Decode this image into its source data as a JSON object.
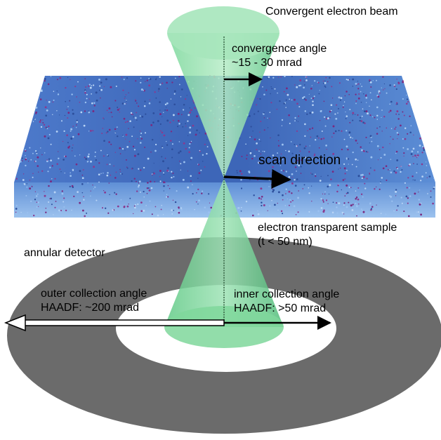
{
  "labels": {
    "beam": "Convergent electron beam",
    "convergence_angle": "convergence angle",
    "convergence_value": "~15 - 30 mrad",
    "scan_direction": "scan direction",
    "sample": "electron transparent sample",
    "sample_thickness": "(t < 50 nm)",
    "detector": "annular detector",
    "outer_angle": "outer collection angle",
    "outer_value": "HAADF: ~200 mrad",
    "inner_angle": "inner collection angle",
    "inner_value": "HAADF: >50 mrad"
  },
  "colors": {
    "detector": "#6b6b6b",
    "detector_hole": "#ffffff",
    "sample_blue": "#3e67b8",
    "sample_light": "#6f9fe0",
    "atom_purple": "#7a2a80",
    "beam_green": "#6fd08e",
    "beam_edge": "#2f9a55",
    "arrow": "#000000"
  }
}
